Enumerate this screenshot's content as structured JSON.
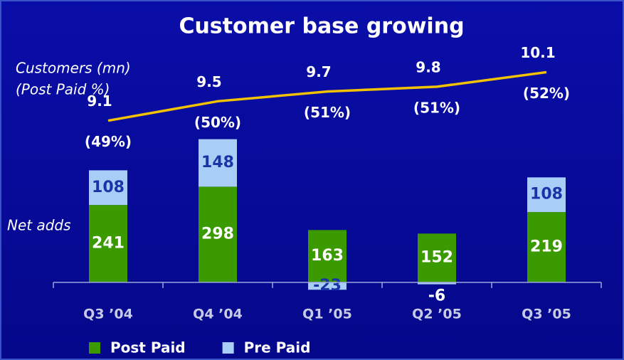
{
  "chart_data": {
    "type": "bar",
    "stacked": true,
    "title": "Customer base growing",
    "categories": [
      "Q3 ’04",
      "Q4 ’04",
      "Q1 ’05",
      "Q2 ’05",
      "Q3 ’05"
    ],
    "series": [
      {
        "name": "Post Paid",
        "color": "#3a9a00",
        "values": [
          241,
          298,
          163,
          152,
          219
        ]
      },
      {
        "name": "Pre Paid",
        "color": "#a8cef8",
        "values": [
          108,
          148,
          -23,
          -6,
          108
        ]
      }
    ],
    "ylim": [
      -100,
      700
    ],
    "line": {
      "type": "line",
      "axis": "y2",
      "color": "#f2c200",
      "values": [
        9.1,
        9.5,
        9.7,
        9.8,
        10.1
      ]
    },
    "post_paid_share": {
      "values": [
        49,
        50,
        51,
        51,
        52
      ],
      "value_labels": [
        "(49%)",
        "(50%)",
        "(51%)",
        "(51%)",
        "(52%)"
      ]
    },
    "y2lim": [
      5.1,
      10.4
    ],
    "annotations": [
      "Customers (mn)",
      "(Post Paid %)",
      "Net adds"
    ]
  }
}
